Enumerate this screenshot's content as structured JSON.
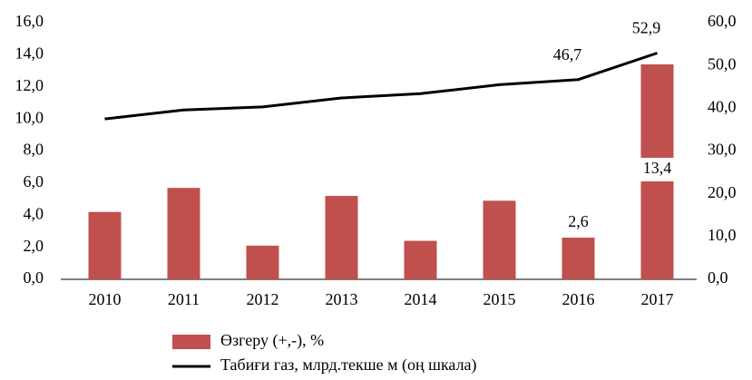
{
  "chart_data": {
    "type": "bar_line",
    "categories": [
      "2010",
      "2011",
      "2012",
      "2013",
      "2014",
      "2015",
      "2016",
      "2017"
    ],
    "series": [
      {
        "name": "Өзгеру (+,-), %",
        "type": "bar",
        "color": "#c0504d",
        "values": [
          4.2,
          5.7,
          2.1,
          5.2,
          2.4,
          4.9,
          2.6,
          13.4
        ],
        "value_labels": [
          null,
          null,
          null,
          null,
          null,
          null,
          "2,6",
          "13,4"
        ]
      },
      {
        "name": "Табиғи газ, млрд.текше м (оң шкала)",
        "type": "line",
        "color": "#000000",
        "axis": "y2",
        "values": [
          37.5,
          39.6,
          40.3,
          42.4,
          43.4,
          45.5,
          46.7,
          52.9
        ],
        "value_labels": [
          null,
          null,
          null,
          null,
          null,
          null,
          "46,7",
          "52,9"
        ]
      }
    ],
    "ylim": [
      0,
      16
    ],
    "yticks": [
      {
        "value": 0,
        "label": "0,0"
      },
      {
        "value": 2,
        "label": "2,0"
      },
      {
        "value": 4,
        "label": "4,0"
      },
      {
        "value": 6,
        "label": "6,0"
      },
      {
        "value": 8,
        "label": "8,0"
      },
      {
        "value": 10,
        "label": "10,0"
      },
      {
        "value": 12,
        "label": "12,0"
      },
      {
        "value": 14,
        "label": "14,0"
      },
      {
        "value": 16,
        "label": "16,0"
      }
    ],
    "y2lim": [
      0,
      60
    ],
    "y2ticks": [
      {
        "value": 0,
        "label": "0,0"
      },
      {
        "value": 10,
        "label": "10,0"
      },
      {
        "value": 20,
        "label": "20,0"
      },
      {
        "value": 30,
        "label": "30,0"
      },
      {
        "value": 40,
        "label": "40,0"
      },
      {
        "value": 50,
        "label": "50,0"
      },
      {
        "value": 60,
        "label": "60,0"
      }
    ],
    "grid": false
  }
}
